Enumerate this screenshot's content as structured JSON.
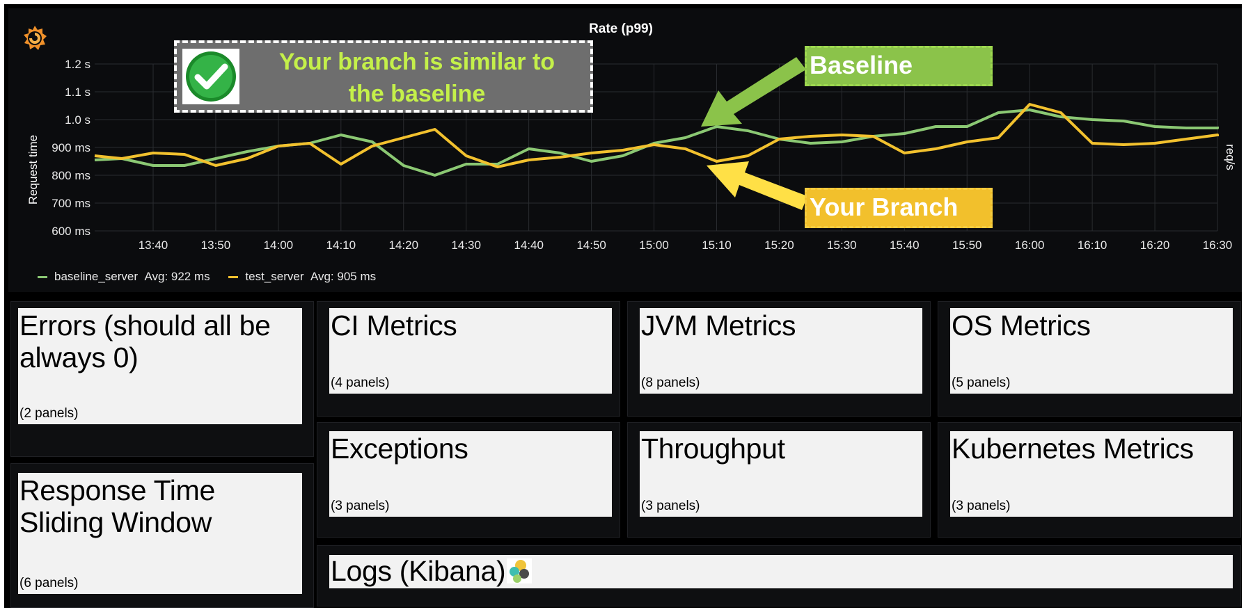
{
  "chart": {
    "title": "Rate (p99)",
    "y_axis_label": "Request time",
    "right_axis_label": "req/s",
    "y_ticks": [
      "1.2 s",
      "1.1 s",
      "1.0 s",
      "900 ms",
      "800 ms",
      "700 ms",
      "600 ms"
    ],
    "x_ticks": [
      "13:40",
      "13:50",
      "14:00",
      "14:10",
      "14:20",
      "14:30",
      "14:40",
      "14:50",
      "15:00",
      "15:10",
      "15:20",
      "15:30",
      "15:40",
      "15:50",
      "16:00",
      "16:10",
      "16:20",
      "16:30"
    ],
    "legend": [
      {
        "name": "baseline_server",
        "avg": "Avg: 922 ms",
        "color": "#8bc873"
      },
      {
        "name": "test_server",
        "avg": "Avg: 905 ms",
        "color": "#f2c12e"
      }
    ]
  },
  "chart_data": {
    "type": "line",
    "title": "Rate (p99)",
    "ylabel": "Request time",
    "y2label": "req/s",
    "ylim": [
      600,
      1200
    ],
    "x_unit": "minutes",
    "x": [
      "13:30",
      "13:35",
      "13:40",
      "13:45",
      "13:50",
      "13:55",
      "14:00",
      "14:05",
      "14:10",
      "14:15",
      "14:20",
      "14:25",
      "14:30",
      "14:35",
      "14:40",
      "14:45",
      "14:50",
      "14:55",
      "15:00",
      "15:05",
      "15:10",
      "15:15",
      "15:20",
      "15:25",
      "15:30",
      "15:35",
      "15:40",
      "15:45",
      "15:50",
      "15:55",
      "16:00",
      "16:05",
      "16:10",
      "16:15",
      "16:20",
      "16:25",
      "16:30",
      "16:32"
    ],
    "series": [
      {
        "name": "baseline_server",
        "color": "#8bc873",
        "values": [
          855,
          860,
          835,
          835,
          860,
          885,
          905,
          915,
          945,
          920,
          835,
          800,
          840,
          840,
          895,
          880,
          850,
          870,
          915,
          935,
          975,
          960,
          930,
          915,
          920,
          940,
          950,
          975,
          975,
          1025,
          1035,
          1010,
          1000,
          995,
          975,
          970,
          970,
          975
        ]
      },
      {
        "name": "test_server",
        "color": "#f2c12e",
        "values": [
          870,
          860,
          880,
          875,
          835,
          860,
          905,
          915,
          840,
          905,
          935,
          965,
          870,
          830,
          855,
          865,
          880,
          890,
          910,
          895,
          850,
          870,
          930,
          940,
          945,
          940,
          880,
          895,
          920,
          935,
          1055,
          1025,
          915,
          910,
          915,
          930,
          945,
          940
        ]
      }
    ],
    "grid": true,
    "legend_position": "bottom-left"
  },
  "callout": {
    "line1": "Your branch is similar to",
    "line2": "the baseline",
    "icon": "checkmark-icon"
  },
  "annotations": {
    "baseline_label": "Baseline",
    "branch_label": "Your Branch",
    "baseline_color": "#8bc34a",
    "branch_color": "#f2c02c"
  },
  "rows": [
    {
      "title": "Errors (should all be always 0)",
      "count": "(2 panels)"
    },
    {
      "title": "CI Metrics",
      "count": "(4 panels)"
    },
    {
      "title": "JVM Metrics",
      "count": "(8 panels)"
    },
    {
      "title": "OS Metrics",
      "count": "(5 panels)"
    },
    {
      "title": "Response Time Sliding Window",
      "count": "(6 panels)"
    },
    {
      "title": "Exceptions",
      "count": "(3 panels)"
    },
    {
      "title": "Throughput",
      "count": "(3 panels)"
    },
    {
      "title": "Kubernetes Metrics",
      "count": "(3 panels)"
    },
    {
      "title": "Logs (Kibana)",
      "count": ""
    }
  ]
}
